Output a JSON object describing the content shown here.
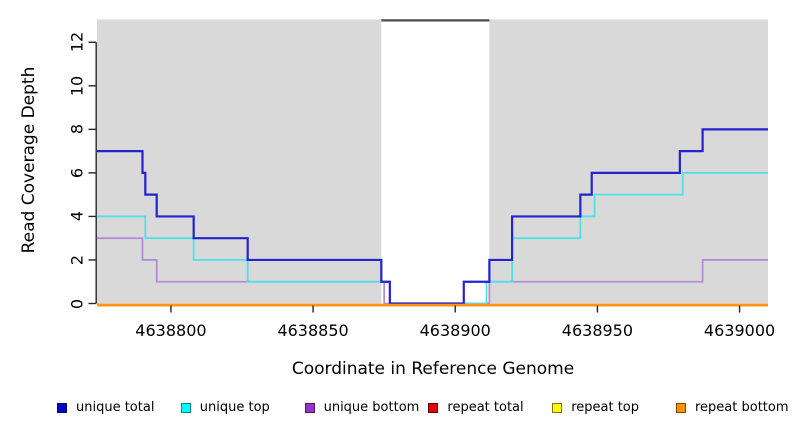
{
  "chart_data": {
    "type": "line",
    "subtype": "step-coverage",
    "title": "",
    "xlabel": "Coordinate in Reference Genome",
    "ylabel": "Read Coverage Depth",
    "xlim": [
      4638774,
      4639010
    ],
    "ylim": [
      0,
      13
    ],
    "grid": false,
    "plot_background": "#d9d9d9",
    "axis_color": "#262626",
    "x_ticks": [
      4638800,
      4638850,
      4638900,
      4638950,
      4639000
    ],
    "x_tick_labels": [
      "4638800",
      "4638850",
      "4638900",
      "4638950",
      "4639000"
    ],
    "y_ticks": [
      0,
      2,
      4,
      6,
      8,
      10,
      12
    ],
    "y_tick_labels": [
      "0",
      "2",
      "4",
      "6",
      "8",
      "10",
      "12"
    ],
    "highlight_region": {
      "start": 4638874,
      "end": 4638912,
      "fill": "#ffffff",
      "top_line_color": "#4a4a4a",
      "note": "masked/no-background region with dark cap line at top of panel"
    },
    "series": [
      {
        "name": "repeat total",
        "line_color": "#e60000",
        "line_width": 2,
        "steps": [
          [
            4638774,
            0
          ],
          [
            4639010,
            0
          ]
        ]
      },
      {
        "name": "repeat top",
        "line_color": "#ffff00",
        "line_width": 2,
        "steps": [
          [
            4638774,
            0
          ],
          [
            4639010,
            0
          ]
        ]
      },
      {
        "name": "unique bottom",
        "line_color": "#b78ad8",
        "line_width": 1.8,
        "steps": [
          [
            4638774,
            3
          ],
          [
            4638790,
            2
          ],
          [
            4638795,
            1
          ],
          [
            4638875,
            0
          ],
          [
            4638912,
            1
          ],
          [
            4638987,
            2
          ],
          [
            4639010,
            2
          ]
        ]
      },
      {
        "name": "unique top",
        "line_color": "#4fe0e8",
        "line_width": 1.8,
        "steps": [
          [
            4638774,
            4
          ],
          [
            4638791,
            3
          ],
          [
            4638808,
            2
          ],
          [
            4638827,
            1
          ],
          [
            4638877,
            0
          ],
          [
            4638911,
            1
          ],
          [
            4638920,
            3
          ],
          [
            4638944,
            4
          ],
          [
            4638949,
            5
          ],
          [
            4638980,
            6
          ],
          [
            4639010,
            6
          ]
        ]
      },
      {
        "name": "unique total",
        "line_color": "#2323cf",
        "line_width": 2.2,
        "steps": [
          [
            4638774,
            7
          ],
          [
            4638790,
            6
          ],
          [
            4638791,
            5
          ],
          [
            4638795,
            4
          ],
          [
            4638808,
            3
          ],
          [
            4638827,
            2
          ],
          [
            4638874,
            1
          ],
          [
            4638877,
            0
          ],
          [
            4638903,
            1
          ],
          [
            4638912,
            2
          ],
          [
            4638920,
            4
          ],
          [
            4638944,
            5
          ],
          [
            4638948,
            6
          ],
          [
            4638979,
            7
          ],
          [
            4638987,
            8
          ],
          [
            4639010,
            8
          ]
        ]
      },
      {
        "name": "repeat bottom",
        "line_color": "#ff9510",
        "line_width": 2.8,
        "steps": [
          [
            4638774,
            0
          ],
          [
            4639010,
            0
          ]
        ]
      }
    ],
    "legend_position": "bottom"
  },
  "legend": {
    "items": [
      {
        "label": "unique total",
        "fill": "#0000cc",
        "border": "#000066"
      },
      {
        "label": "unique top",
        "fill": "#00ffff",
        "border": "#008b94"
      },
      {
        "label": "unique bottom",
        "fill": "#9933cc",
        "border": "#4d1a66"
      },
      {
        "label": "repeat total",
        "fill": "#e60000",
        "border": "#5c0000"
      },
      {
        "label": "repeat top",
        "fill": "#ffff00",
        "border": "#7a7a00"
      },
      {
        "label": "repeat bottom",
        "fill": "#f59300",
        "border": "#7a4900"
      }
    ]
  }
}
